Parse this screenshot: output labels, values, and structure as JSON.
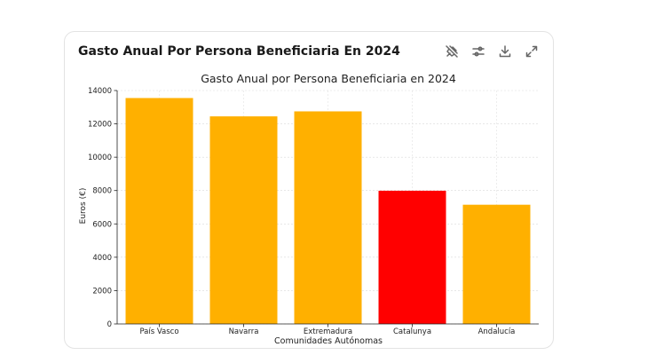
{
  "card": {
    "title": "Gasto Anual Por Persona Beneficiaria En 2024"
  },
  "toolbar": {
    "icons": [
      "pin-off-icon",
      "sliders-icon",
      "download-icon",
      "expand-icon"
    ]
  },
  "chart_data": {
    "type": "bar",
    "title": "Gasto Anual por Persona Beneficiaria en 2024",
    "xlabel": "Comunidades Autónomas",
    "ylabel": "Euros (€)",
    "categories": [
      "País Vasco",
      "Navarra",
      "Extremadura",
      "Catalunya",
      "Andalucía"
    ],
    "values": [
      13550,
      12450,
      12750,
      7990,
      7150
    ],
    "colors": [
      "#ffb000",
      "#ffb000",
      "#ffb000",
      "#ff0000",
      "#ffb000"
    ],
    "ylim": [
      0,
      14000
    ],
    "yticks": [
      0,
      2000,
      4000,
      6000,
      8000,
      10000,
      12000,
      14000
    ],
    "grid": true
  }
}
